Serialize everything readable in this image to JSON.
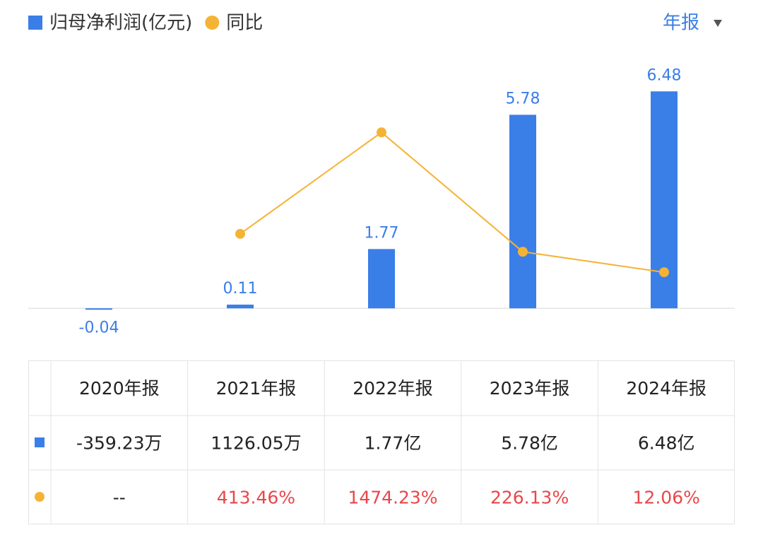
{
  "chart_data": {
    "type": "bar_line",
    "categories": [
      "2020年报",
      "2021年报",
      "2022年报",
      "2023年报",
      "2024年报"
    ],
    "series": [
      {
        "name": "归母净利润(亿元)",
        "color": "#3a7ee8",
        "type": "bar",
        "values": [
          -0.04,
          0.11,
          1.77,
          5.78,
          6.48
        ]
      },
      {
        "name": "同比",
        "color": "#f5b335",
        "type": "line",
        "axis": "y2",
        "values": [
          null,
          413.46,
          1474.23,
          226.13,
          12.06
        ]
      }
    ],
    "ylim": [
      -0.1,
      7.9
    ],
    "y2lim": [
      -400,
      2400
    ]
  },
  "period_selector": "年报",
  "table": {
    "rows": [
      [
        "-359.23万",
        "1126.05万",
        "1.77亿",
        "5.78亿",
        "6.48亿"
      ],
      [
        "--",
        "413.46%",
        "1474.23%",
        "226.13%",
        "12.06%"
      ]
    ]
  }
}
